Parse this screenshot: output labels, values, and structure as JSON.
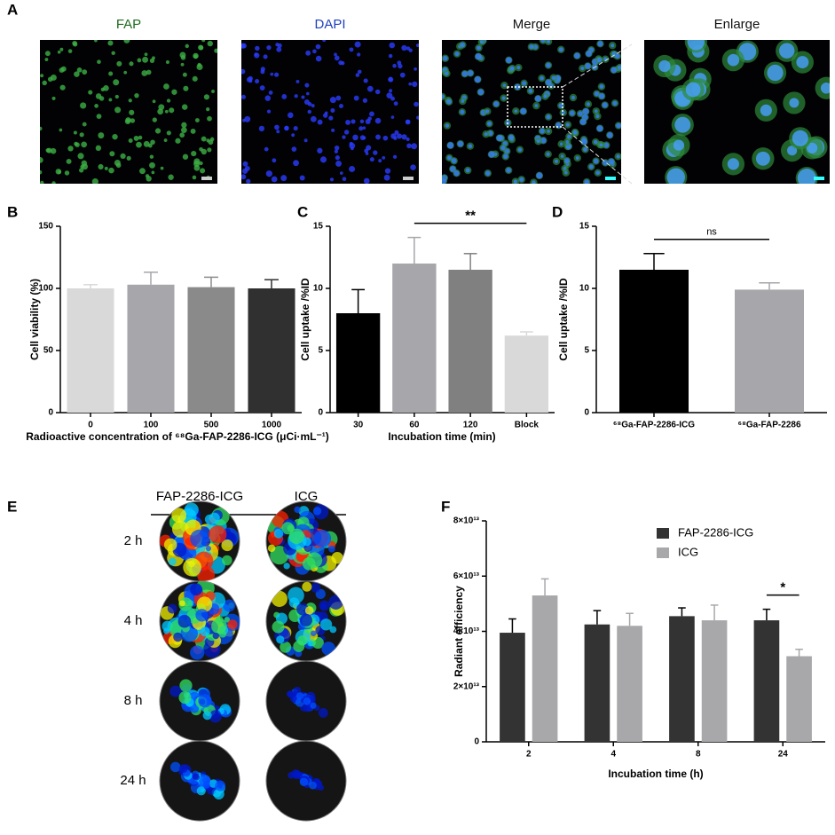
{
  "panel_a": {
    "label": "A",
    "titles": [
      "FAP",
      "DAPI",
      "Merge",
      "Enlarge"
    ]
  },
  "panel_e": {
    "label": "E",
    "columns": [
      "FAP-2286-ICG",
      "ICG"
    ],
    "rows": [
      "2 h",
      "4 h",
      "8 h",
      "24 h"
    ]
  },
  "chart_data": [
    {
      "type": "bar",
      "panel_label": "B",
      "y_label": "Cell viability (%)",
      "x_label": "Radioactive concentration of ⁶⁸Ga-FAP-2286-ICG (μCi·mL⁻¹)",
      "categories": [
        "0",
        "100",
        "500",
        "1000"
      ],
      "values": [
        100,
        103,
        101,
        100
      ],
      "errors": [
        3,
        10,
        8,
        7
      ],
      "colors": [
        "#d9d9d9",
        "#a6a6ab",
        "#8a8a8a",
        "#303030"
      ],
      "ylim": [
        0,
        150
      ],
      "yticks": [
        0,
        50,
        100,
        150
      ]
    },
    {
      "type": "bar",
      "panel_label": "C",
      "y_label": "Cell uptake /%ID",
      "x_label": "Incubation time (min)",
      "categories": [
        "30",
        "60",
        "120",
        "Block"
      ],
      "values": [
        8,
        12,
        11.5,
        6.2
      ],
      "errors": [
        1.9,
        2.1,
        1.3,
        0.3
      ],
      "colors": [
        "#000000",
        "#a6a6ab",
        "#808080",
        "#d9d9d9"
      ],
      "ylim": [
        0,
        15
      ],
      "yticks": [
        0,
        5,
        10,
        15
      ],
      "annotations": [
        {
          "text": "**",
          "between": [
            "60",
            "Block"
          ]
        }
      ]
    },
    {
      "type": "bar",
      "panel_label": "D",
      "y_label": "Cell uptake /%ID",
      "categories": [
        "⁶⁸Ga-FAP-2286-ICG",
        "⁶⁸Ga-FAP-2286"
      ],
      "values": [
        11.5,
        9.9
      ],
      "errors": [
        1.3,
        0.55
      ],
      "colors": [
        "#000000",
        "#a6a6ab"
      ],
      "ylim": [
        0,
        15
      ],
      "yticks": [
        0,
        5,
        10,
        15
      ],
      "annotations": [
        {
          "text": "ns",
          "between": [
            "⁶⁸Ga-FAP-2286-ICG",
            "⁶⁸Ga-FAP-2286"
          ]
        }
      ]
    },
    {
      "type": "bar",
      "panel_label": "F",
      "y_label": "Radiant efficiency",
      "x_label": "Incubation time (h)",
      "categories": [
        "2",
        "4",
        "8",
        "24"
      ],
      "series": [
        {
          "name": "FAP-2286-ICG",
          "color": "#333333",
          "values": [
            39500000000000,
            42500000000000,
            45500000000000,
            44000000000000
          ],
          "errors": [
            5000000000000,
            5000000000000,
            3000000000000,
            4000000000000
          ]
        },
        {
          "name": "ICG",
          "color": "#a8a8ab",
          "values": [
            53000000000000,
            42000000000000,
            44000000000000,
            31000000000000
          ],
          "errors": [
            6000000000000,
            4500000000000,
            5500000000000,
            2500000000000
          ]
        }
      ],
      "ylim": [
        0,
        80000000000000
      ],
      "yticks": [
        0,
        {
          "value": 20000000000000,
          "label": "2×10¹³"
        },
        {
          "value": 40000000000000,
          "label": "4×10¹³"
        },
        {
          "value": 60000000000000,
          "label": "6×10¹³"
        },
        {
          "value": 80000000000000,
          "label": "8×10¹³"
        }
      ],
      "legend": "upper right",
      "annotations": [
        {
          "text": "*",
          "between": [
            "24",
            "24"
          ]
        }
      ]
    }
  ]
}
